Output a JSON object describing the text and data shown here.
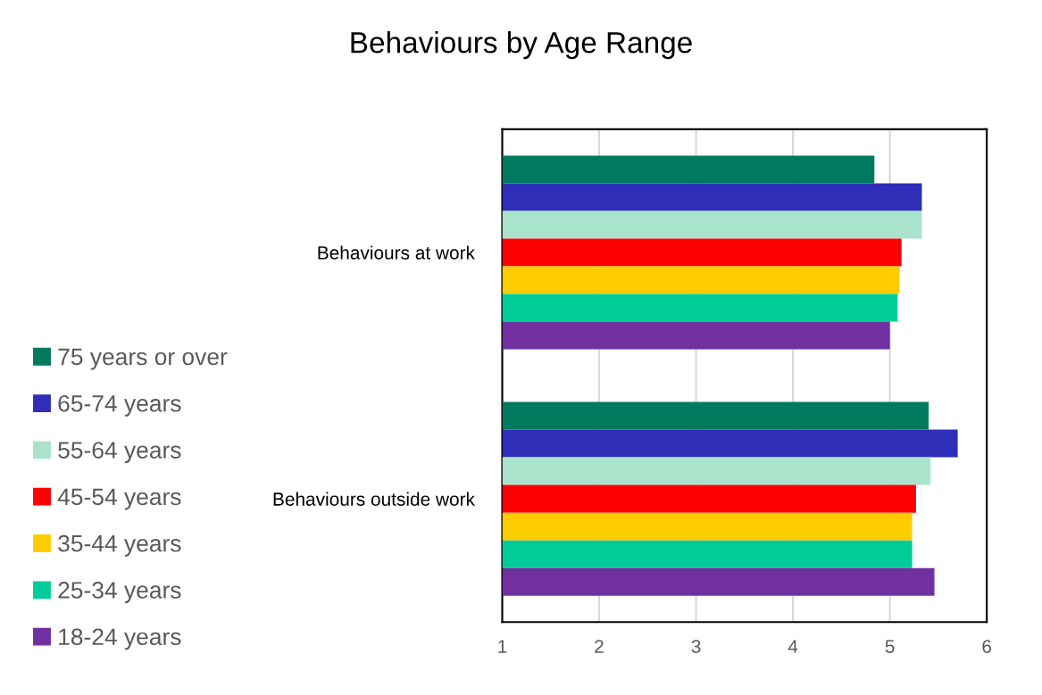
{
  "chart_data": {
    "type": "bar",
    "orientation": "horizontal",
    "title": "Behaviours by Age Range",
    "categories": [
      "Behaviours at work",
      "Behaviours outside work"
    ],
    "series": [
      {
        "name": "75 years or over",
        "color": "#007a5e",
        "values": [
          4.84,
          5.4
        ]
      },
      {
        "name": "65-74 years",
        "color": "#2e2eb8",
        "values": [
          5.33,
          5.7
        ]
      },
      {
        "name": "55-64 years",
        "color": "#aae3cc",
        "values": [
          5.33,
          5.42
        ]
      },
      {
        "name": "45-54 years",
        "color": "#ff0000",
        "values": [
          5.12,
          5.27
        ]
      },
      {
        "name": "35-44 years",
        "color": "#ffcc00",
        "values": [
          5.1,
          5.23
        ]
      },
      {
        "name": "25-34 years",
        "color": "#00cc99",
        "values": [
          5.08,
          5.23
        ]
      },
      {
        "name": "18-24 years",
        "color": "#7030a0",
        "values": [
          5.0,
          5.46
        ]
      }
    ],
    "xlim": [
      1,
      6
    ],
    "xticks": [
      1,
      2,
      3,
      4,
      5,
      6
    ],
    "grid": "x",
    "legend": "left"
  }
}
